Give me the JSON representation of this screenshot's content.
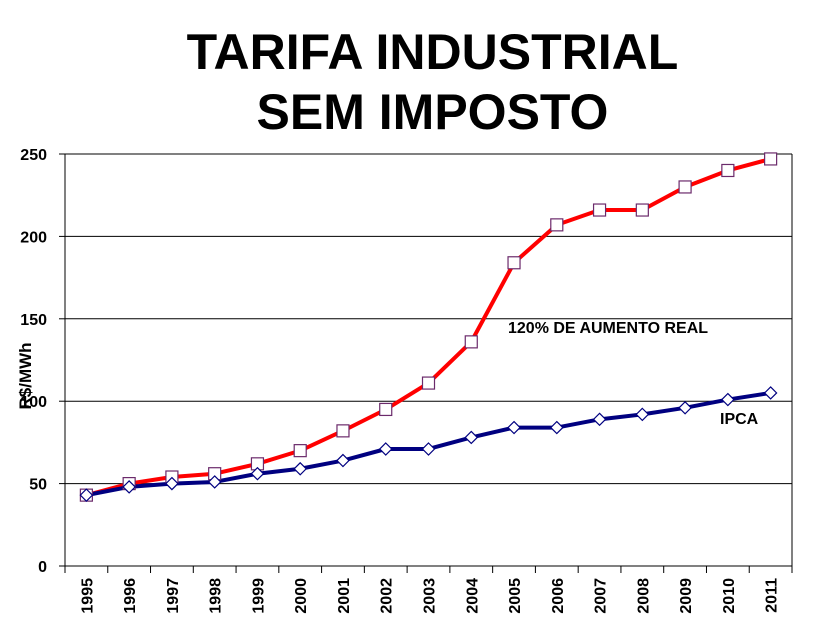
{
  "chart_data": {
    "type": "line",
    "title_lines": [
      "TARIFA INDUSTRIAL",
      "SEM IMPOSTO"
    ],
    "ylabel": "R$/MWh",
    "xlabel": "",
    "ylim": [
      0,
      250
    ],
    "yticks": [
      0,
      50,
      100,
      150,
      200,
      250
    ],
    "grid": true,
    "categories": [
      "1995",
      "1996",
      "1997",
      "1998",
      "1999",
      "2000",
      "2001",
      "2002",
      "2003",
      "2004",
      "2005",
      "2006",
      "2007",
      "2008",
      "2009",
      "2010",
      "2011"
    ],
    "series": [
      {
        "label": "120% DE AUMENTO REAL",
        "color": "#ff0000",
        "marker": "square",
        "values": [
          43,
          50,
          54,
          56,
          62,
          70,
          82,
          95,
          111,
          136,
          184,
          207,
          216,
          216,
          230,
          240,
          247
        ]
      },
      {
        "label": "IPCA",
        "color": "#000080",
        "marker": "diamond",
        "values": [
          43,
          48,
          50,
          51,
          56,
          59,
          64,
          71,
          71,
          78,
          84,
          84,
          89,
          92,
          96,
          101,
          105
        ]
      }
    ]
  }
}
